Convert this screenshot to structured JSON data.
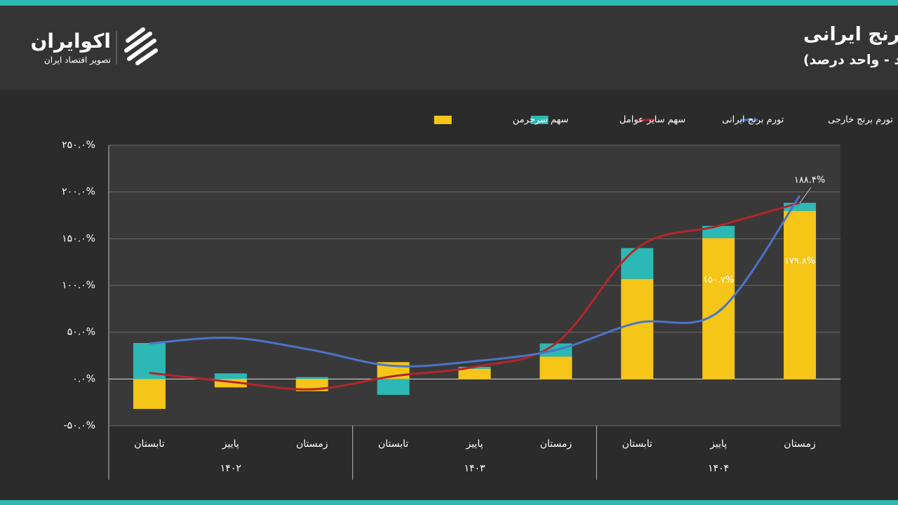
{
  "brand": {
    "name": "اکوایران",
    "tagline": "تصویر اقتصاد ایران"
  },
  "chart_data": {
    "type": "bar",
    "title": "سهم کشاورز و سایر عوامل واسطه‌ای از تورم نقطه‌ای برنج ایرانی",
    "subtitle": "(واحد: درصد - واحد درصد)",
    "categories": [
      "تابستان",
      "پاییز",
      "زمستان",
      "تابستان",
      "پاییز",
      "زمستان",
      "تابستان",
      "پاییز",
      "زمستان"
    ],
    "x_groups": [
      "۱۴۰۲",
      "۱۴۰۳",
      "۱۴۰۴"
    ],
    "ylim": [
      -50,
      250
    ],
    "yticks": [
      {
        "value": -50,
        "label": "-۵۰.۰%"
      },
      {
        "value": 0,
        "label": "۰.۰%"
      },
      {
        "value": 50,
        "label": "۵۰.۰%"
      },
      {
        "value": 100,
        "label": "۱۰۰.۰%"
      },
      {
        "value": 150,
        "label": "۱۵۰.۰%"
      },
      {
        "value": 200,
        "label": "۲۰۰.۰%"
      },
      {
        "value": 250,
        "label": "۲۵۰.۰%"
      }
    ],
    "grid": true,
    "series": [
      {
        "name": "سهم سرخرمن",
        "type": "bar",
        "color": "#f5c518",
        "values": [
          -32,
          -9,
          -13,
          18,
          11,
          24,
          107,
          150.7,
          179.8
        ],
        "value_labels": [
          null,
          null,
          null,
          null,
          null,
          null,
          null,
          "۱۵۰.۷%",
          "۱۷۹.۸%"
        ]
      },
      {
        "name": "سهم سایر عوامل",
        "type": "bar",
        "color": "#2cb8b4",
        "values": [
          38.5,
          6,
          2,
          -17,
          2,
          14,
          33,
          13,
          8.6
        ]
      },
      {
        "name": "تورم برنج ایرانی",
        "type": "line",
        "color": "#b3262c",
        "values": [
          6.5,
          -3,
          -11,
          3,
          13,
          38,
          140,
          163.7,
          188.4
        ],
        "value_labels": [
          null,
          null,
          null,
          null,
          null,
          null,
          null,
          null,
          "۱۸۸.۴%"
        ]
      },
      {
        "name": "تورم برنج خارجی",
        "type": "line",
        "color": "#4a74c9",
        "values": [
          38,
          44,
          31,
          14,
          19,
          31,
          60,
          72,
          196
        ]
      }
    ]
  }
}
